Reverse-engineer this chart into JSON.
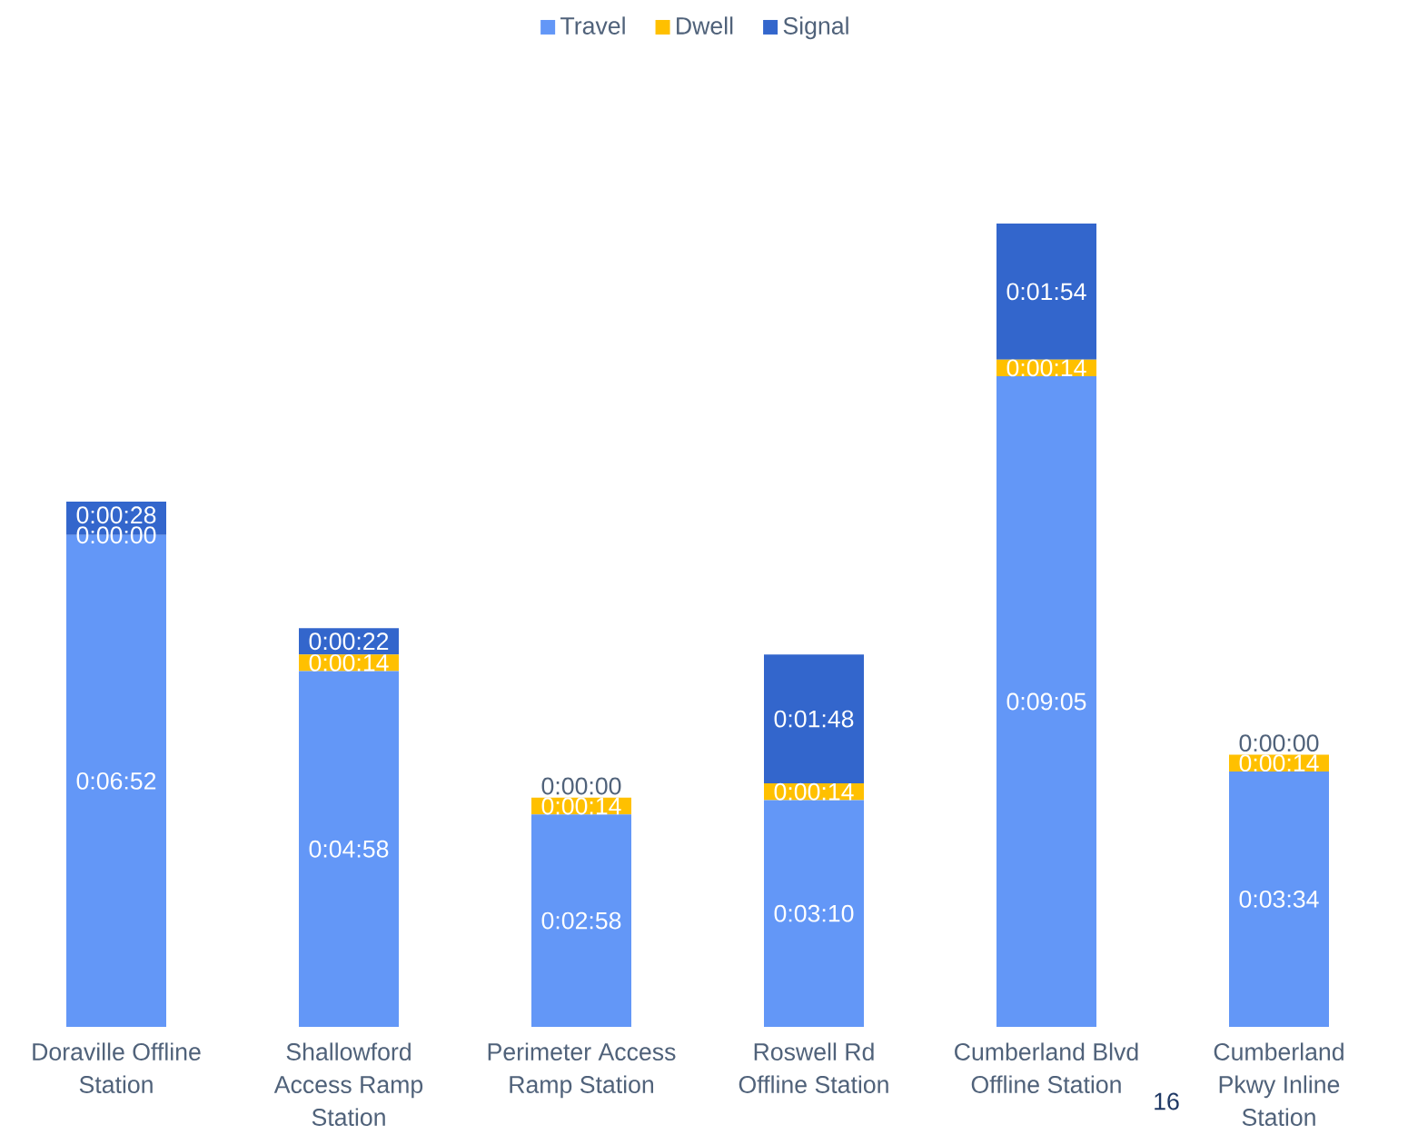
{
  "chart_data": {
    "type": "bar",
    "stacked": true,
    "legend": "top",
    "categories": [
      "Doraville Offline Station",
      "Shallowford Access Ramp Station",
      "Perimeter Access Ramp Station",
      "Roswell Rd Offline Station",
      "Cumberland Blvd Offline Station",
      "Cumberland Pkwy Inline Station"
    ],
    "series": [
      {
        "name": "Travel",
        "color": "#6397f7",
        "values": [
          412,
          298,
          178,
          190,
          545,
          214
        ],
        "value_labels": [
          "0:06:52",
          "0:04:58",
          "0:02:58",
          "0:03:10",
          "0:09:05",
          "0:03:34"
        ]
      },
      {
        "name": "Dwell",
        "color": "#ffc000",
        "values": [
          0,
          14,
          14,
          14,
          14,
          14
        ],
        "value_labels": [
          "0:00:00",
          "0:00:14",
          "0:00:14",
          "0:00:14",
          "0:00:14",
          "0:00:14"
        ]
      },
      {
        "name": "Signal",
        "color": "#3366cc",
        "values": [
          28,
          22,
          0,
          108,
          114,
          0
        ],
        "value_labels": [
          "0:00:28",
          "0:00:22",
          "0:00:00",
          "0:01:48",
          "0:01:54",
          "0:00:00"
        ]
      }
    ],
    "annotations": [
      "16"
    ]
  }
}
